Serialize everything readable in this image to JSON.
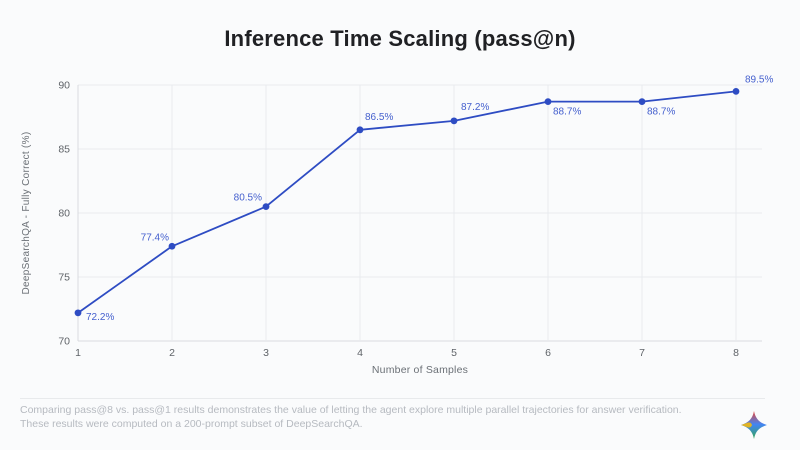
{
  "title": "Inference Time Scaling (pass@n)",
  "chart_data": {
    "type": "line",
    "x": [
      1,
      2,
      3,
      4,
      5,
      6,
      7,
      8
    ],
    "values": [
      72.2,
      77.4,
      80.5,
      86.5,
      87.2,
      88.7,
      88.7,
      89.5
    ],
    "point_labels": [
      "72.2%",
      "77.4%",
      "80.5%",
      "86.5%",
      "87.2%",
      "88.7%",
      "88.7%",
      "89.5%"
    ],
    "xticks": [
      "1",
      "2",
      "3",
      "4",
      "5",
      "6",
      "7",
      "8"
    ],
    "yticks": [
      70,
      75,
      80,
      85,
      90
    ],
    "ylim": [
      70,
      90
    ],
    "xlabel": "Number of Samples",
    "ylabel": "DeepSearchQA - Fully Correct (%)",
    "grid": true,
    "legend": "none",
    "colors": {
      "line": "#2e4cc3",
      "marker": "#2e4cc3",
      "point_label": "#4560ce",
      "grid": "#e9ebee",
      "axis": "#d9dbe0",
      "tick": "#5f6368"
    }
  },
  "footer": {
    "line1": "Comparing pass@8 vs. pass@1 results demonstrates the value of letting the agent explore multiple parallel trajectories for answer verification.",
    "line2": "These results were computed on a 200-prompt subset of DeepSearchQA."
  },
  "logo": {
    "name": "gemini-sparkle",
    "colors": [
      "#ea4335",
      "#4285f4",
      "#34a853",
      "#fbbc04"
    ]
  }
}
